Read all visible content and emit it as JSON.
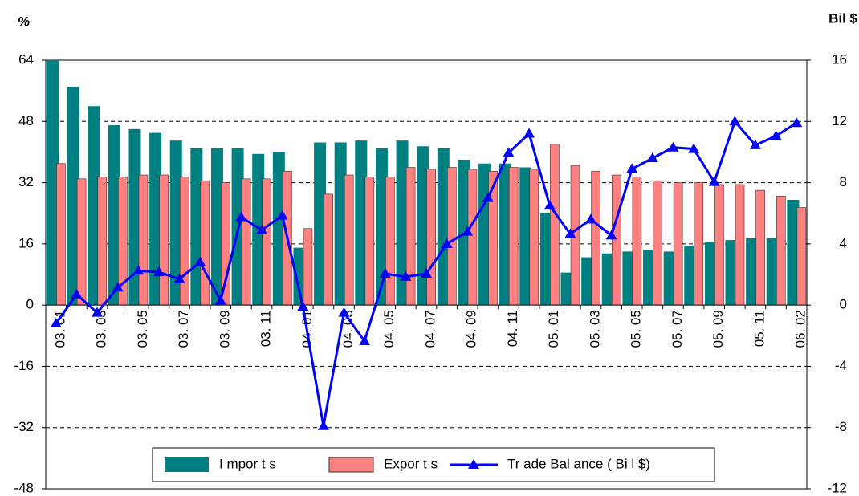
{
  "chart_data": {
    "type": "bar",
    "y_label": "%",
    "y2_label": "Bil $",
    "categories": [
      "03. 01",
      null,
      "03. 03",
      null,
      "03. 05",
      null,
      "03. 07",
      null,
      "03. 09",
      null,
      "03. 11",
      null,
      "04. 01",
      null,
      "04. 03",
      null,
      "04. 05",
      null,
      "04. 07",
      null,
      "04. 09",
      null,
      "04. 11",
      null,
      "05. 01",
      null,
      "05. 03",
      null,
      "05. 05",
      null,
      "05. 07",
      null,
      "05. 09",
      null,
      "05. 11",
      null,
      "06. 02"
    ],
    "series": [
      {
        "name": "I mpor t s",
        "color": "#008080",
        "values": [
          64,
          57,
          52,
          47,
          46,
          45,
          43,
          41,
          41,
          41,
          39.5,
          40,
          15,
          42.5,
          42.5,
          43,
          41,
          43,
          41.5,
          41,
          38,
          37,
          37,
          36,
          24,
          8.5,
          12.5,
          13.5,
          14,
          14.5,
          14,
          15.5,
          16.5,
          17,
          17.5,
          17.5,
          27.5
        ]
      },
      {
        "name": "Expor t s",
        "color": "#ff8080",
        "values": [
          37,
          33,
          33.5,
          33.5,
          34,
          34,
          33.5,
          32.5,
          32,
          33,
          33,
          35,
          20,
          29,
          34,
          33.5,
          33.5,
          36,
          35.5,
          36,
          35.5,
          35,
          36,
          35.5,
          42,
          36.5,
          35,
          34,
          33.5,
          32.5,
          32,
          32,
          31.5,
          31.5,
          30,
          28.5,
          25.5
        ]
      },
      {
        "name": "Tr ade Bal ance ( Bi l  $)",
        "color": "#0000ff",
        "type": "line",
        "axis": "y2",
        "values": [
          -1.2,
          0.7,
          -0.5,
          1.15,
          2.25,
          2.15,
          1.7,
          2.8,
          0.3,
          5.75,
          4.9,
          5.85,
          -0.1,
          -7.9,
          -0.5,
          -2.35,
          2.05,
          1.85,
          2.05,
          4.0,
          4.8,
          7.0,
          9.95,
          11.2,
          6.5,
          4.65,
          5.6,
          4.55,
          8.9,
          9.6,
          10.3,
          10.2,
          8.05,
          12.0,
          10.45,
          11.05,
          11.9
        ]
      }
    ],
    "ylim": [
      -48,
      64
    ],
    "yticks": [
      -48,
      -32,
      -16,
      0,
      16,
      32,
      48,
      64
    ],
    "y2lim": [
      -12,
      16
    ],
    "y2ticks": [
      -12,
      -8,
      -4,
      0,
      4,
      8,
      12,
      16
    ],
    "grid": true,
    "legend": "bottom"
  }
}
